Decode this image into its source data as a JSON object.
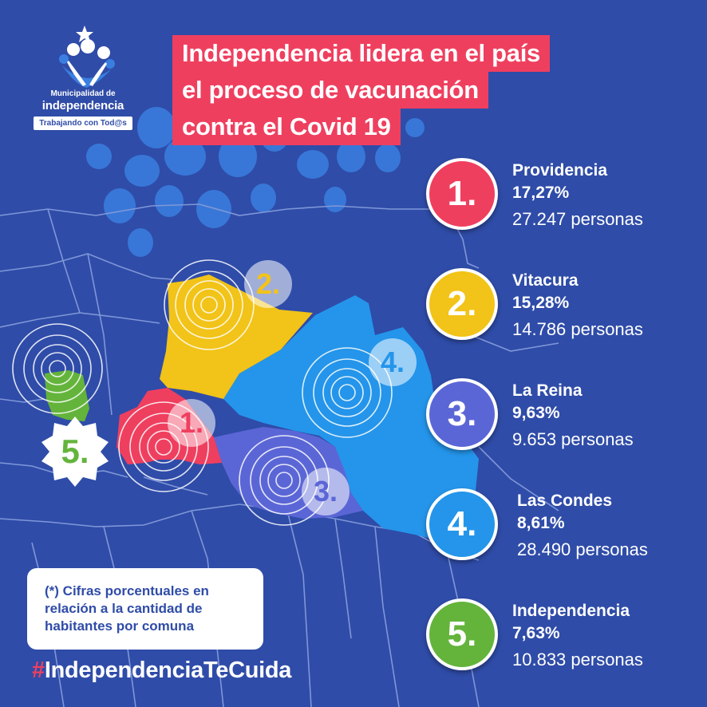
{
  "logo": {
    "name_small": "Municipalidad de",
    "name_big": "independencia",
    "tagline": "Trabajando con Tod@s"
  },
  "title": {
    "lines": [
      "Independencia lidera en el país",
      "el proceso de vacunación",
      "contra el Covid 19"
    ],
    "highlight_color": "#ef3f5f"
  },
  "ranking": [
    {
      "rank": "1.",
      "name": "Providencia",
      "percent": "17,27%",
      "people": "27.247 personas",
      "color": "#ef3f5f"
    },
    {
      "rank": "2.",
      "name": "Vitacura",
      "percent": "15,28%",
      "people": "14.786 personas",
      "color": "#f2c318"
    },
    {
      "rank": "3.",
      "name": "La Reina",
      "percent": "9,63%",
      "people": "9.653 personas",
      "color": "#5b66d6"
    },
    {
      "rank": "4.",
      "name": "Las Condes",
      "percent": "8,61%",
      "people": "28.490 personas",
      "color": "#2495ea"
    },
    {
      "rank": "5.",
      "name": "Independencia",
      "percent": "7,63%",
      "people": "10.833 personas",
      "color": "#64b43c"
    }
  ],
  "map_labels": [
    "1.",
    "2.",
    "3.",
    "4.",
    "5."
  ],
  "note": "(*) Cifras porcentuales en relación a la cantidad de habitantes por comuna",
  "hashtag": {
    "symbol": "#",
    "text": "IndependenciaTeCuida"
  },
  "colors": {
    "background": "#2f4ca8",
    "accent": "#ef3f5f"
  }
}
